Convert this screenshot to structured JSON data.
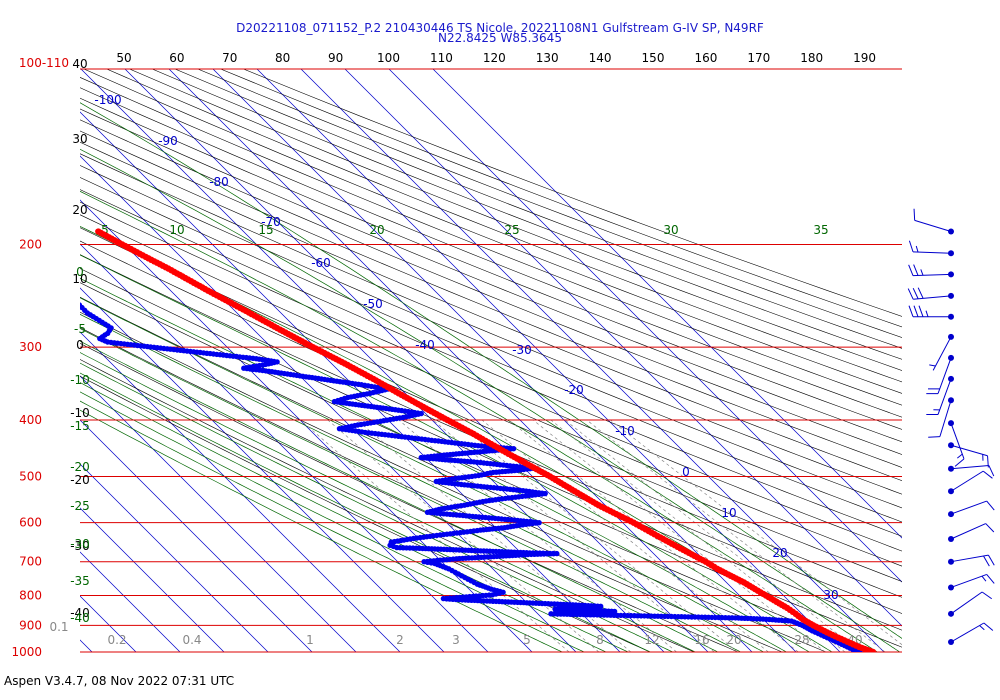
{
  "title": "D20221108_071152_P.2 210430446 TS Nicole, 20221108N1 Gulfstream G-IV SP, N49RF",
  "subtitle": "N22.8425 W85.3645",
  "footer": "Aspen V3.4.7, 08 Nov 2022  07:31 UTC",
  "colors": {
    "isobar": "#dd0000",
    "isotherm": "#0000cc",
    "dry_adiabat": "#000000",
    "moist_adiabat": "#006600",
    "mixing_ratio": "#888888",
    "temperature": "#ff0000",
    "dewpoint": "#0000ee",
    "wind": "#0000cc"
  },
  "chart_data": {
    "type": "scatter",
    "title": "D20221108_071152_P.2 210430446 TS Nicole, 20221108N1 Gulfstream G-IV SP, N49RF",
    "subtitle": "N22.8425 W85.3645",
    "pressure_levels": [
      "100",
      "200",
      "300",
      "400",
      "500",
      "600",
      "700",
      "800",
      "900",
      "1000"
    ],
    "pressure_level_values": [
      100,
      200,
      300,
      400,
      500,
      600,
      700,
      800,
      900,
      1000
    ],
    "top_scale": [
      "50",
      "60",
      "70",
      "80",
      "90",
      "100",
      "110",
      "120",
      "130",
      "140",
      "150",
      "160",
      "170",
      "180",
      "190"
    ],
    "top_left_label": "100-110",
    "left_scale": [
      "40",
      "30",
      "20",
      "10",
      "0",
      "-10",
      "-20",
      "-30",
      "-40"
    ],
    "isotherm_labels": [
      "-100",
      "-90",
      "-80",
      "-70",
      "-60",
      "-50",
      "-40",
      "-30",
      "-20",
      "-10",
      "0",
      "10",
      "20",
      "30"
    ],
    "moist_adiabat_labels": [
      "5",
      "10",
      "15",
      "20",
      "25",
      "30",
      "35"
    ],
    "moist_left_labels": [
      "0",
      "-5",
      "-10",
      "-15",
      "-20",
      "-25",
      "-30",
      "-35",
      "-40"
    ],
    "mixing_ratio_labels": [
      "0.1",
      "0.2",
      "0.4",
      "1",
      "2",
      "3",
      "5",
      "8",
      "12",
      "16",
      "20",
      "28",
      "40"
    ],
    "temperature": {
      "name": "Temperature",
      "points": [
        {
          "p": 1000,
          "t": 27.5
        },
        {
          "p": 980,
          "t": 25.5
        },
        {
          "p": 960,
          "t": 24
        },
        {
          "p": 940,
          "t": 22.5
        },
        {
          "p": 925,
          "t": 21.5
        },
        {
          "p": 900,
          "t": 20
        },
        {
          "p": 880,
          "t": 19
        },
        {
          "p": 860,
          "t": 18.6
        },
        {
          "p": 840,
          "t": 18
        },
        {
          "p": 820,
          "t": 17
        },
        {
          "p": 800,
          "t": 16
        },
        {
          "p": 780,
          "t": 15
        },
        {
          "p": 760,
          "t": 14
        },
        {
          "p": 740,
          "t": 12.5
        },
        {
          "p": 720,
          "t": 11
        },
        {
          "p": 700,
          "t": 10
        },
        {
          "p": 680,
          "t": 8.5
        },
        {
          "p": 660,
          "t": 7
        },
        {
          "p": 640,
          "t": 5.5
        },
        {
          "p": 620,
          "t": 4
        },
        {
          "p": 600,
          "t": 2.5
        },
        {
          "p": 580,
          "t": 0.5
        },
        {
          "p": 560,
          "t": -1.5
        },
        {
          "p": 540,
          "t": -3
        },
        {
          "p": 520,
          "t": -4.5
        },
        {
          "p": 500,
          "t": -6
        },
        {
          "p": 480,
          "t": -8
        },
        {
          "p": 460,
          "t": -10
        },
        {
          "p": 440,
          "t": -12
        },
        {
          "p": 420,
          "t": -14
        },
        {
          "p": 400,
          "t": -16.5
        },
        {
          "p": 380,
          "t": -19
        },
        {
          "p": 360,
          "t": -21.5
        },
        {
          "p": 340,
          "t": -24
        },
        {
          "p": 320,
          "t": -27
        },
        {
          "p": 300,
          "t": -30.5
        },
        {
          "p": 280,
          "t": -34
        },
        {
          "p": 260,
          "t": -37.5
        },
        {
          "p": 240,
          "t": -41.5
        },
        {
          "p": 220,
          "t": -45.5
        },
        {
          "p": 210,
          "t": -48
        },
        {
          "p": 200,
          "t": -50.5
        },
        {
          "p": 190,
          "t": -53
        }
      ]
    },
    "dewpoint": {
      "name": "Dewpoint",
      "points": [
        {
          "p": 1000,
          "t": 24.5
        },
        {
          "p": 990,
          "t": 23.5
        },
        {
          "p": 975,
          "t": 22.5
        },
        {
          "p": 960,
          "t": 21.5
        },
        {
          "p": 940,
          "t": 20
        },
        {
          "p": 920,
          "t": 18.5
        },
        {
          "p": 900,
          "t": 17.5
        },
        {
          "p": 885,
          "t": 16
        },
        {
          "p": 878,
          "t": 10
        },
        {
          "p": 874,
          "t": 4
        },
        {
          "p": 872,
          "t": -2
        },
        {
          "p": 870,
          "t": -8
        },
        {
          "p": 868,
          "t": -14
        },
        {
          "p": 866,
          "t": -20
        },
        {
          "p": 864,
          "t": -26
        },
        {
          "p": 862,
          "t": -32
        },
        {
          "p": 860,
          "t": -37
        },
        {
          "p": 858,
          "t": -33
        },
        {
          "p": 855,
          "t": -27
        },
        {
          "p": 852,
          "t": -22
        },
        {
          "p": 848,
          "t": -28
        },
        {
          "p": 844,
          "t": -35
        },
        {
          "p": 840,
          "t": -30
        },
        {
          "p": 835,
          "t": -24
        },
        {
          "p": 830,
          "t": -30
        },
        {
          "p": 826,
          "t": -36
        },
        {
          "p": 822,
          "t": -42
        },
        {
          "p": 818,
          "t": -48
        },
        {
          "p": 814,
          "t": -54
        },
        {
          "p": 810,
          "t": -58
        },
        {
          "p": 806,
          "t": -54
        },
        {
          "p": 802,
          "t": -50
        },
        {
          "p": 798,
          "t": -46
        },
        {
          "p": 790,
          "t": -43
        },
        {
          "p": 780,
          "t": -45
        },
        {
          "p": 765,
          "t": -47
        },
        {
          "p": 750,
          "t": -48
        },
        {
          "p": 735,
          "t": -49
        },
        {
          "p": 720,
          "t": -50
        },
        {
          "p": 705,
          "t": -52
        },
        {
          "p": 700,
          "t": -54
        },
        {
          "p": 696,
          "t": -50
        },
        {
          "p": 692,
          "t": -46
        },
        {
          "p": 688,
          "t": -40
        },
        {
          "p": 684,
          "t": -34
        },
        {
          "p": 680,
          "t": -28
        },
        {
          "p": 678,
          "t": -22
        },
        {
          "p": 676,
          "t": -28
        },
        {
          "p": 673,
          "t": -34
        },
        {
          "p": 670,
          "t": -40
        },
        {
          "p": 667,
          "t": -46
        },
        {
          "p": 664,
          "t": -52
        },
        {
          "p": 662,
          "t": -57
        },
        {
          "p": 656,
          "t": -58
        },
        {
          "p": 648,
          "t": -57
        },
        {
          "p": 640,
          "t": -52
        },
        {
          "p": 632,
          "t": -46
        },
        {
          "p": 625,
          "t": -40
        },
        {
          "p": 618,
          "t": -34
        },
        {
          "p": 612,
          "t": -28
        },
        {
          "p": 606,
          "t": -24
        },
        {
          "p": 600,
          "t": -19
        },
        {
          "p": 594,
          "t": -24
        },
        {
          "p": 588,
          "t": -30
        },
        {
          "p": 582,
          "t": -36
        },
        {
          "p": 576,
          "t": -42
        },
        {
          "p": 568,
          "t": -38
        },
        {
          "p": 560,
          "t": -32
        },
        {
          "p": 552,
          "t": -27
        },
        {
          "p": 546,
          "t": -22
        },
        {
          "p": 540,
          "t": -16
        },
        {
          "p": 535,
          "t": -11
        },
        {
          "p": 528,
          "t": -16
        },
        {
          "p": 522,
          "t": -22
        },
        {
          "p": 516,
          "t": -28
        },
        {
          "p": 510,
          "t": -33
        },
        {
          "p": 504,
          "t": -28
        },
        {
          "p": 498,
          "t": -22
        },
        {
          "p": 492,
          "t": -18
        },
        {
          "p": 488,
          "t": -12
        },
        {
          "p": 484,
          "t": -8
        },
        {
          "p": 478,
          "t": -14
        },
        {
          "p": 472,
          "t": -20
        },
        {
          "p": 468,
          "t": -26
        },
        {
          "p": 464,
          "t": -31
        },
        {
          "p": 460,
          "t": -26
        },
        {
          "p": 456,
          "t": -20
        },
        {
          "p": 452,
          "t": -14
        },
        {
          "p": 448,
          "t": -8
        },
        {
          "p": 444,
          "t": -14
        },
        {
          "p": 438,
          "t": -20
        },
        {
          "p": 432,
          "t": -26
        },
        {
          "p": 426,
          "t": -32
        },
        {
          "p": 420,
          "t": -38
        },
        {
          "p": 414,
          "t": -43
        },
        {
          "p": 408,
          "t": -38
        },
        {
          "p": 402,
          "t": -32
        },
        {
          "p": 396,
          "t": -26
        },
        {
          "p": 390,
          "t": -21
        },
        {
          "p": 384,
          "t": -26
        },
        {
          "p": 378,
          "t": -32
        },
        {
          "p": 372,
          "t": -38
        },
        {
          "p": 366,
          "t": -34
        },
        {
          "p": 360,
          "t": -28
        },
        {
          "p": 354,
          "t": -23
        },
        {
          "p": 348,
          "t": -28
        },
        {
          "p": 342,
          "t": -34
        },
        {
          "p": 336,
          "t": -40
        },
        {
          "p": 330,
          "t": -46
        },
        {
          "p": 326,
          "t": -51
        },
        {
          "p": 322,
          "t": -46
        },
        {
          "p": 318,
          "t": -42
        },
        {
          "p": 314,
          "t": -46
        },
        {
          "p": 310,
          "t": -52
        },
        {
          "p": 306,
          "t": -58
        },
        {
          "p": 302,
          "t": -64
        },
        {
          "p": 298,
          "t": -70
        },
        {
          "p": 294,
          "t": -76
        },
        {
          "p": 290,
          "t": -77
        },
        {
          "p": 284,
          "t": -74
        },
        {
          "p": 278,
          "t": -72
        },
        {
          "p": 270,
          "t": -73
        },
        {
          "p": 262,
          "t": -74
        },
        {
          "p": 254,
          "t": -74
        },
        {
          "p": 246,
          "t": -75
        },
        {
          "p": 240,
          "t": -75
        },
        {
          "p": 234,
          "t": -73
        }
      ]
    },
    "isolated_dewpoint": [
      {
        "p": 190,
        "t": -66
      }
    ],
    "wind_barbs": [
      {
        "p": 190,
        "dir": 287,
        "speed": 10
      },
      {
        "p": 207,
        "dir": 272,
        "speed": 15
      },
      {
        "p": 225,
        "dir": 268,
        "speed": 25
      },
      {
        "p": 245,
        "dir": 265,
        "speed": 30
      },
      {
        "p": 266,
        "dir": 270,
        "speed": 35
      },
      {
        "p": 288,
        "dir": 208,
        "speed": 5
      },
      {
        "p": 313,
        "dir": 200,
        "speed": 20
      },
      {
        "p": 340,
        "dir": 200,
        "speed": 15
      },
      {
        "p": 370,
        "dir": 197,
        "speed": 10
      },
      {
        "p": 405,
        "dir": 160,
        "speed": 15
      },
      {
        "p": 442,
        "dir": 106,
        "speed": 15
      },
      {
        "p": 485,
        "dir": 85,
        "speed": 10
      },
      {
        "p": 530,
        "dir": 58,
        "speed": 10
      },
      {
        "p": 580,
        "dir": 70,
        "speed": 10
      },
      {
        "p": 640,
        "dir": 66,
        "speed": 10
      },
      {
        "p": 700,
        "dir": 80,
        "speed": 20
      },
      {
        "p": 775,
        "dir": 70,
        "speed": 15
      },
      {
        "p": 860,
        "dir": 55,
        "speed": 10
      },
      {
        "p": 1000,
        "dir": 60,
        "speed": 15
      }
    ]
  }
}
